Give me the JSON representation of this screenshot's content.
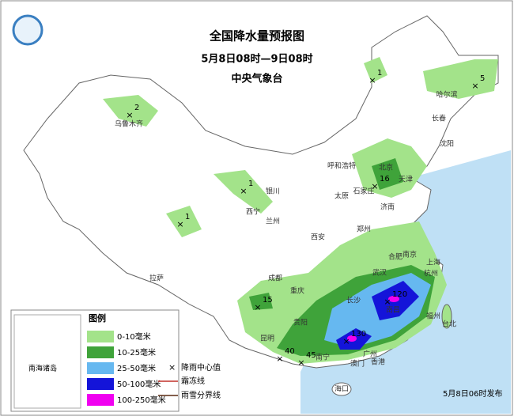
{
  "header": {
    "title": "全国降水量预报图",
    "subtitle": "5月8日08时—9日08时",
    "issuer": "中央气象台"
  },
  "legend": {
    "title": "图例",
    "items": [
      {
        "label": "0-10毫米",
        "color": "#a3e38a"
      },
      {
        "label": "10-25毫米",
        "color": "#3fa33a"
      },
      {
        "label": "25-50毫米",
        "color": "#66b8f0"
      },
      {
        "label": "50-100毫米",
        "color": "#1414d9"
      },
      {
        "label": "100-250毫米",
        "color": "#f000f0"
      }
    ],
    "symbols": [
      "降雨中心值",
      "霜冻线",
      "雨雪分界线"
    ]
  },
  "inset": {
    "label": "南海诸岛"
  },
  "cities": [
    "乌鲁木齐",
    "哈尔滨",
    "长春",
    "沈阳",
    "呼和浩特",
    "北京",
    "天津",
    "石家庄",
    "太原",
    "济南",
    "银川",
    "西宁",
    "兰州",
    "郑州",
    "西安",
    "合肥",
    "南京",
    "上海",
    "杭州",
    "武汉",
    "成都",
    "重庆",
    "长沙",
    "南昌",
    "福州",
    "拉萨",
    "贵阳",
    "昆明",
    "南宁",
    "广州",
    "香港",
    "澳门",
    "台北",
    "海口"
  ],
  "rain_centers": [
    "2",
    "1",
    "5",
    "16",
    "1",
    "1",
    "15",
    "120",
    "130",
    "40",
    "45"
  ],
  "footer": "5月8日06时发布"
}
